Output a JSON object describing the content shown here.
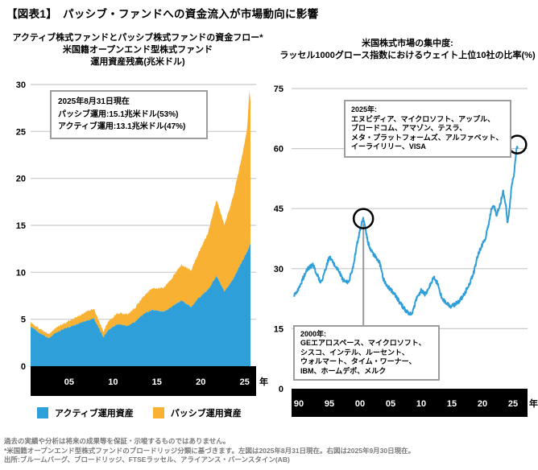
{
  "title": "【図表1】　パッシブ・ファンドへの資金流入が市場動向に影響",
  "footnotes": "過去の実績や分析は将来の成果等を保証・示唆するものではありません。\n*米国籍オープンエンド型株式ファンドのブロードリッジ分類に基づきます。左図は2025年8月31日現在。右図は2025年9月30日現在。\n出所:ブルームバーグ、ブロードリッジ、FTSEラッセル、アライアンス・バーンスタイン(AB)",
  "colors": {
    "active_blue": "#2E9FD9",
    "passive_yellow": "#F8B133",
    "grid": "#C9C9C9",
    "axis_band": "#000000",
    "annotation_line": "#999999"
  },
  "chart_data": [
    {
      "type": "area",
      "stacked": true,
      "title": "アクティブ株式ファンドとパッシブ株式ファンドの資金フロー*\n米国籍オープンエンド型株式ファンド\n運用資産残高(兆米ドル)",
      "annotation": "2025年8月31日現在\nパッシブ運用:15.1兆米ドル(53%)\nアクティブ運用:13.1兆米ドル(47%)",
      "x_unit": "年",
      "ylim": [
        0,
        30
      ],
      "y_ticks": [
        0,
        5,
        10,
        15,
        20,
        25,
        30
      ],
      "x_ticks": [
        "05",
        "10",
        "15",
        "20",
        "25"
      ],
      "x_tick_years": [
        2005,
        2010,
        2015,
        2020,
        2025
      ],
      "x_range": [
        2000.6,
        2025.67
      ],
      "grid": true,
      "x": [
        2000.6,
        2001.5,
        2002.7,
        2003.5,
        2004.5,
        2005.5,
        2006.5,
        2007.8,
        2008.9,
        2009.5,
        2010.5,
        2011.7,
        2012.5,
        2013.5,
        2014.5,
        2015.7,
        2016.5,
        2017.8,
        2018.9,
        2019.8,
        2020.8,
        2021.8,
        2022.7,
        2023.7,
        2024.8,
        2025.3,
        2025.55,
        2025.67
      ],
      "series": [
        {
          "name": "アクティブ運用資産",
          "color": "#2E9FD9",
          "values": [
            4.2,
            3.6,
            3.0,
            3.6,
            4.0,
            4.3,
            4.7,
            5.1,
            3.1,
            3.9,
            4.5,
            4.3,
            4.7,
            5.6,
            6.0,
            5.8,
            6.2,
            7.0,
            6.3,
            7.3,
            8.1,
            9.6,
            7.9,
            9.3,
            11.3,
            12.2,
            12.8,
            13.1
          ]
        },
        {
          "name": "パッシブ運用資産",
          "color": "#F8B133",
          "values": [
            0.5,
            0.45,
            0.4,
            0.5,
            0.6,
            0.75,
            0.9,
            1.05,
            0.6,
            0.9,
            1.15,
            1.25,
            1.5,
            1.9,
            2.3,
            2.5,
            2.9,
            3.8,
            3.9,
            4.9,
            6.0,
            8.2,
            7.1,
            8.8,
            11.5,
            13.2,
            16.6,
            15.1
          ]
        }
      ],
      "legend_position": "bottom"
    },
    {
      "type": "line",
      "title": "米国株式市場の集中度:\nラッセル1000グロース指数におけるウェイト上位10社の比率(%)",
      "x_unit": "年",
      "ylim": [
        0,
        75
      ],
      "y_ticks": [
        0,
        15,
        30,
        45,
        60,
        75
      ],
      "x_ticks": [
        "90",
        "95",
        "00",
        "05",
        "10",
        "15",
        "20",
        "25"
      ],
      "x_tick_years": [
        1990,
        1995,
        2000,
        2005,
        2010,
        2015,
        2020,
        2025
      ],
      "x_range": [
        1989.2,
        2025.75
      ],
      "grid": true,
      "line_color": "#2E9FD9",
      "points": [
        [
          1989.2,
          23.5
        ],
        [
          1990,
          25
        ],
        [
          1990.8,
          28
        ],
        [
          1991.5,
          30
        ],
        [
          1992.3,
          31
        ],
        [
          1993,
          28.5
        ],
        [
          1993.6,
          26.5
        ],
        [
          1994.2,
          29
        ],
        [
          1995,
          33
        ],
        [
          1995.8,
          31
        ],
        [
          1996.5,
          29.5
        ],
        [
          1997.3,
          27
        ],
        [
          1998.1,
          26.5
        ],
        [
          1998.8,
          30
        ],
        [
          1999.5,
          36
        ],
        [
          2000.2,
          41
        ],
        [
          2000.55,
          42.5
        ],
        [
          2001.3,
          36.5
        ],
        [
          2002,
          34
        ],
        [
          2002.7,
          32.5
        ],
        [
          2003.2,
          31.5
        ],
        [
          2003.8,
          27.5
        ],
        [
          2004.5,
          25.5
        ],
        [
          2005.5,
          24
        ],
        [
          2006.5,
          21.5
        ],
        [
          2007.5,
          19.5
        ],
        [
          2008,
          18.5
        ],
        [
          2008.6,
          19
        ],
        [
          2009.2,
          22.5
        ],
        [
          2010,
          24.5
        ],
        [
          2010.7,
          23.5
        ],
        [
          2011.5,
          26
        ],
        [
          2012,
          28
        ],
        [
          2012.6,
          26.5
        ],
        [
          2013.3,
          23
        ],
        [
          2014,
          21.5
        ],
        [
          2014.8,
          20.5
        ],
        [
          2015.5,
          21
        ],
        [
          2016.3,
          22
        ],
        [
          2017,
          23.5
        ],
        [
          2017.8,
          26
        ],
        [
          2018.5,
          28.5
        ],
        [
          2019.2,
          33
        ],
        [
          2019.8,
          35.5
        ],
        [
          2020.5,
          37.5
        ],
        [
          2021,
          41
        ],
        [
          2021.4,
          44.5
        ],
        [
          2021.8,
          46
        ],
        [
          2022.3,
          43.5
        ],
        [
          2022.8,
          45.5
        ],
        [
          2023.4,
          49.5
        ],
        [
          2023.8,
          46
        ],
        [
          2024.1,
          41.5
        ],
        [
          2024.5,
          46
        ],
        [
          2024.8,
          51
        ],
        [
          2025.1,
          53
        ],
        [
          2025.35,
          56.5
        ],
        [
          2025.55,
          59.5
        ],
        [
          2025.75,
          60.5
        ]
      ],
      "annotations": [
        {
          "year": 2000.55,
          "value": 42.5,
          "circled": true,
          "label": "2000年:\nGEエアロスペース、マイクロソフト、\nシスコ、インテル、ルーセント、\nウォルマート、タイム・ワーナー、\nIBM、ホームデポ、メルク"
        },
        {
          "year": 2025.7,
          "value": 61,
          "circled": true,
          "label": "2025年:\nエヌビディア、マイクロソフト、アップル、\nブロードコム、アマゾン、テスラ、\nメタ・プラットフォームズ、アルファベット、\nイーライリリー、VISA"
        }
      ]
    }
  ]
}
